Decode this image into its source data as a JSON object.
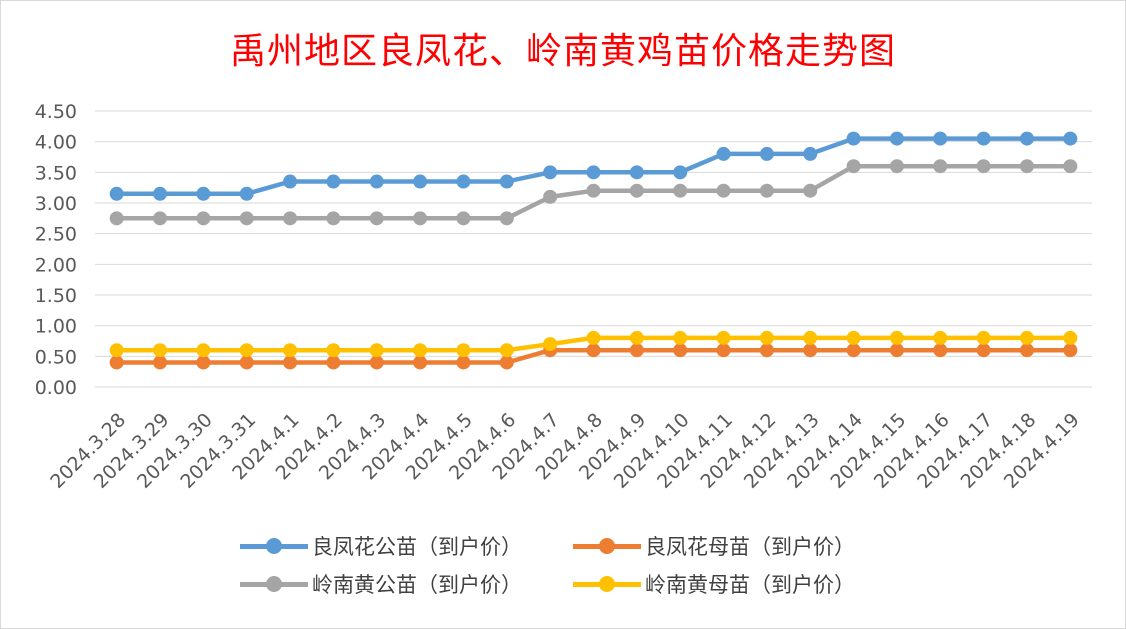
{
  "chart_data": {
    "type": "line",
    "title": "禹州地区良凤花、岭南黄鸡苗价格走势图",
    "xlabel": "",
    "ylabel": "",
    "ylim": [
      0,
      4.5
    ],
    "y_ticks": [
      "0.00",
      "0.50",
      "1.00",
      "1.50",
      "2.00",
      "2.50",
      "3.00",
      "3.50",
      "4.00",
      "4.50"
    ],
    "grid": true,
    "legend_position": "bottom",
    "categories": [
      "2024.3.28",
      "2024.3.29",
      "2024.3.30",
      "2024.3.31",
      "2024.4.1",
      "2024.4.2",
      "2024.4.3",
      "2024.4.4",
      "2024.4.5",
      "2024.4.6",
      "2024.4.7",
      "2024.4.8",
      "2024.4.9",
      "2024.4.10",
      "2024.4.11",
      "2024.4.12",
      "2024.4.13",
      "2024.4.14",
      "2024.4.15",
      "2024.4.16",
      "2024.4.17",
      "2024.4.18",
      "2024.4.19"
    ],
    "series": [
      {
        "name": "良凤花公苗（到户价）",
        "color": "#5b9bd5",
        "values": [
          3.15,
          3.15,
          3.15,
          3.15,
          3.35,
          3.35,
          3.35,
          3.35,
          3.35,
          3.35,
          3.5,
          3.5,
          3.5,
          3.5,
          3.8,
          3.8,
          3.8,
          4.05,
          4.05,
          4.05,
          4.05,
          4.05,
          4.05
        ]
      },
      {
        "name": "良凤花母苗（到户价）",
        "color": "#ed7d31",
        "values": [
          0.4,
          0.4,
          0.4,
          0.4,
          0.4,
          0.4,
          0.4,
          0.4,
          0.4,
          0.4,
          0.6,
          0.6,
          0.6,
          0.6,
          0.6,
          0.6,
          0.6,
          0.6,
          0.6,
          0.6,
          0.6,
          0.6,
          0.6
        ]
      },
      {
        "name": "岭南黄公苗（到户价）",
        "color": "#a5a5a5",
        "values": [
          2.75,
          2.75,
          2.75,
          2.75,
          2.75,
          2.75,
          2.75,
          2.75,
          2.75,
          2.75,
          3.1,
          3.2,
          3.2,
          3.2,
          3.2,
          3.2,
          3.2,
          3.6,
          3.6,
          3.6,
          3.6,
          3.6,
          3.6
        ]
      },
      {
        "name": "岭南黄母苗（到户价）",
        "color": "#ffc000",
        "values": [
          0.6,
          0.6,
          0.6,
          0.6,
          0.6,
          0.6,
          0.6,
          0.6,
          0.6,
          0.6,
          0.7,
          0.8,
          0.8,
          0.8,
          0.8,
          0.8,
          0.8,
          0.8,
          0.8,
          0.8,
          0.8,
          0.8,
          0.8
        ]
      }
    ]
  }
}
